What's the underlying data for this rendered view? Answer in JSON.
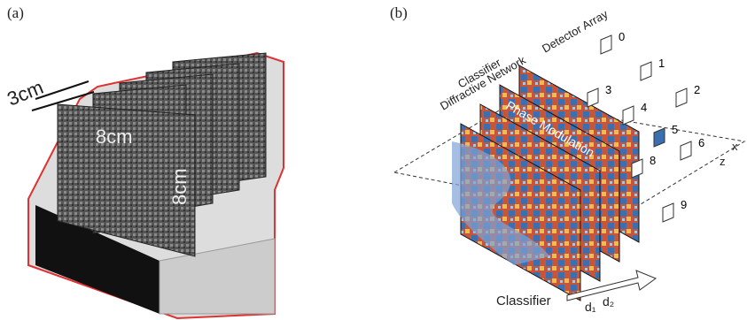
{
  "panel_a": {
    "label": "(a)",
    "spacing": "3cm",
    "width": "8cm",
    "height": "8cm"
  },
  "panel_b": {
    "label": "(b)",
    "detector_array": "Detector Array",
    "network": [
      "Classifier",
      "Diffractive Network"
    ],
    "phase": "Phase Modulation",
    "detectors": [
      "0",
      "1",
      "2",
      "3",
      "4",
      "5",
      "6",
      "8",
      "9"
    ],
    "axes": [
      "x",
      "z"
    ],
    "classifier": "Classifier",
    "distances": [
      "d₁",
      "d₂"
    ]
  }
}
